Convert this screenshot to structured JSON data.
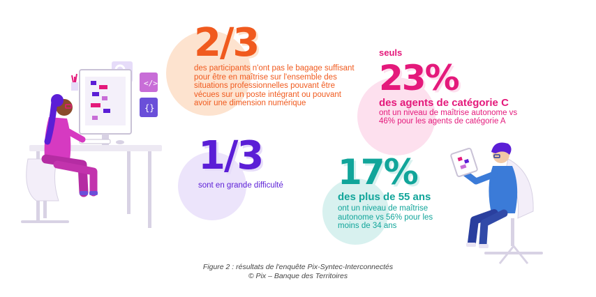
{
  "stats": {
    "two_thirds": {
      "value": "2/3",
      "text": "des participants n'ont pas le bagage suffisant pour être en maîtrise sur l'ensemble des situations professionnelles pouvant être vécues sur un poste intégrant ou pouvant avoir une dimension numérique",
      "color": "#f05a1e",
      "blob_color": "#fde3cf"
    },
    "one_third": {
      "value": "1/3",
      "text": "sont en grande difficulté",
      "color": "#5b1ed6",
      "blob_color": "#ece4fb"
    },
    "twenty_three": {
      "prefix": "seuls",
      "value": "23%",
      "subtitle": "des agents de catégorie C",
      "text": "ont un niveau de maîtrise autonome vs 46% pour les agents de catégorie A",
      "color": "#e4197b",
      "blob_color": "#fde0ee"
    },
    "seventeen": {
      "value": "17%",
      "subtitle": "des plus de 55 ans",
      "text": "ont un niveau de maîtrise autonome vs 56% pour les moins de 34 ans",
      "color": "#11a59a",
      "blob_color": "#d8f1ef"
    }
  },
  "caption": {
    "line1": "Figure 2 : résultats de l'enquête Pix-Syntec-Interconnectés",
    "line2": "© Pix – Banque des Territoires"
  },
  "illustrations": {
    "left": "woman-at-desk-illustration",
    "right": "man-with-tablet-illustration"
  }
}
